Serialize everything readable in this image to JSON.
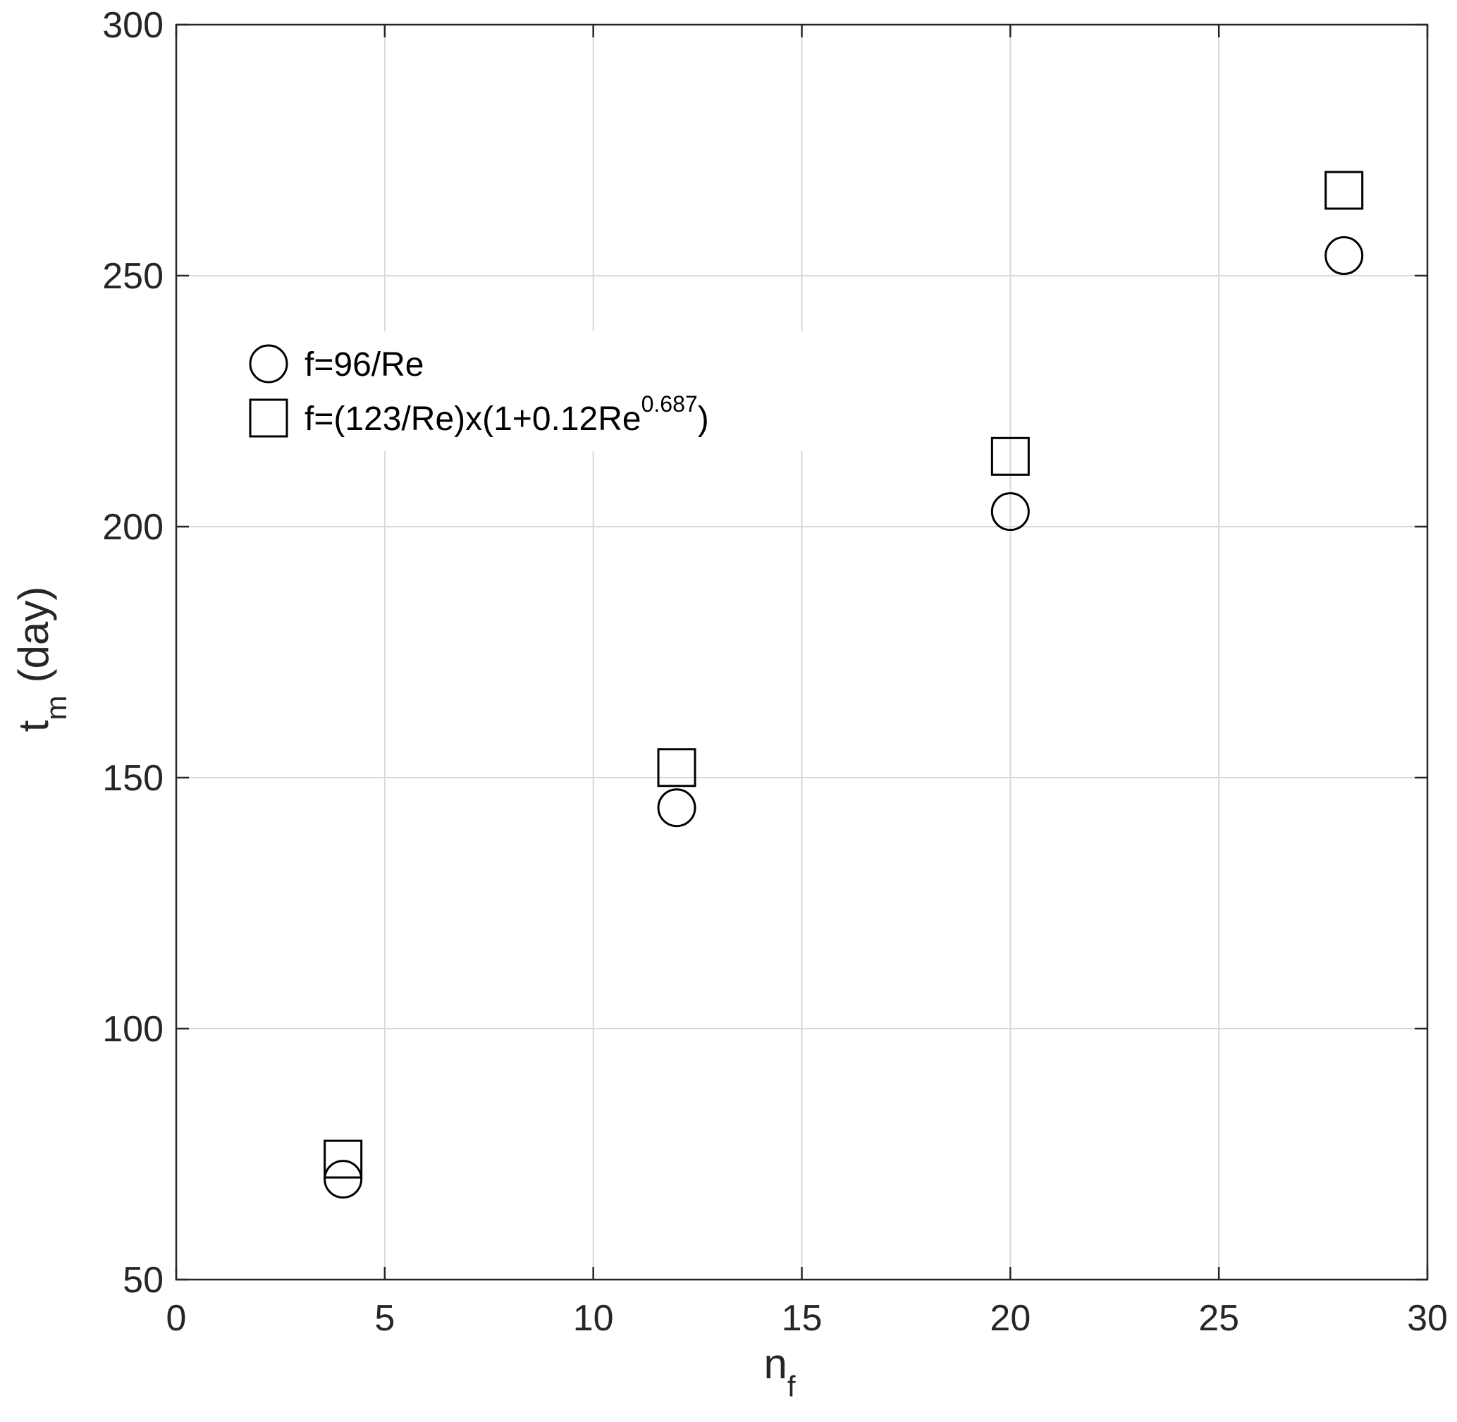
{
  "chart_data": {
    "type": "scatter",
    "xlim": [
      0,
      30
    ],
    "ylim": [
      50,
      300
    ],
    "xticks": [
      0,
      5,
      10,
      15,
      20,
      25,
      30
    ],
    "yticks": [
      50,
      100,
      150,
      200,
      250,
      300
    ],
    "grid": true,
    "xlabel": {
      "base": "n",
      "sub": "f"
    },
    "ylabel": {
      "base": "t",
      "sub": "m",
      "suffix": "(day)"
    },
    "legend_position": "upper-left",
    "series": [
      {
        "name": "f=96/Re",
        "marker": "circle",
        "x": [
          4,
          12,
          20,
          28
        ],
        "y": [
          70,
          144,
          203,
          254
        ]
      },
      {
        "name": "f=(123/Re)x(1+0.12Re^0.687)",
        "name_parts": {
          "main": "f=(123/Re)x(1+0.12Re",
          "sup": "0.687",
          "tail": ")"
        },
        "marker": "square",
        "x": [
          4,
          12,
          20,
          28
        ],
        "y": [
          74,
          152,
          214,
          267
        ]
      }
    ],
    "colors": {
      "axis": "#262626",
      "grid": "#d9d9d9",
      "marker": "#000000"
    }
  }
}
